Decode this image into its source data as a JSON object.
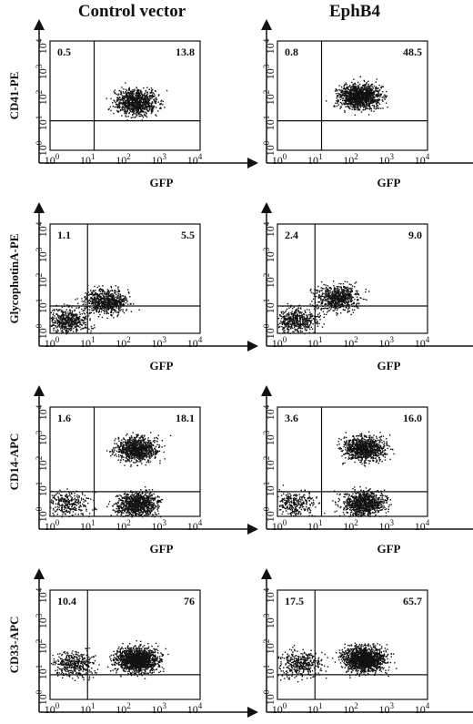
{
  "headers": {
    "control": "Control vector",
    "ephb4": "EphB4"
  },
  "xlabel": "GFP",
  "ticks": [
    {
      "base": "10",
      "exp": "0"
    },
    {
      "base": "10",
      "exp": "1"
    },
    {
      "base": "10",
      "exp": "2"
    },
    {
      "base": "10",
      "exp": "3"
    },
    {
      "base": "10",
      "exp": "4"
    }
  ],
  "chart_data": [
    {
      "type": "scatter",
      "row": 1,
      "column": "Control vector",
      "ylabel": "CD41-PE",
      "xlabel": "GFP",
      "xscale": "log",
      "yscale": "log",
      "xlim": [
        1,
        10000
      ],
      "ylim": [
        1,
        10000
      ],
      "quadrant_labels": {
        "upper_left": "0.5",
        "upper_right": "13.8"
      },
      "gate_x": 15,
      "gate_y": 12,
      "clusters": [
        {
          "cx": 200,
          "cy": 60,
          "n": 900
        }
      ]
    },
    {
      "type": "scatter",
      "row": 1,
      "column": "EphB4",
      "ylabel": "CD41-PE",
      "xlabel": "GFP",
      "xscale": "log",
      "yscale": "log",
      "xlim": [
        1,
        10000
      ],
      "ylim": [
        1,
        10000
      ],
      "quadrant_labels": {
        "upper_left": "0.8",
        "upper_right": "48.5"
      },
      "gate_x": 15,
      "gate_y": 12,
      "clusters": [
        {
          "cx": 150,
          "cy": 100,
          "n": 1200
        }
      ]
    },
    {
      "type": "scatter",
      "row": 2,
      "column": "Control vector",
      "ylabel": "GlycophotinA-PE",
      "xlabel": "GFP",
      "xscale": "log",
      "yscale": "log",
      "xlim": [
        1,
        10000
      ],
      "ylim": [
        1,
        10000
      ],
      "quadrant_labels": {
        "upper_left": "1.1",
        "upper_right": "5.5"
      },
      "gate_x": 10,
      "gate_y": 10,
      "clusters": [
        {
          "cx": 3,
          "cy": 3,
          "n": 500
        },
        {
          "cx": 30,
          "cy": 15,
          "n": 700
        }
      ]
    },
    {
      "type": "scatter",
      "row": 2,
      "column": "EphB4",
      "ylabel": "GlycophotinA-PE",
      "xlabel": "GFP",
      "xscale": "log",
      "yscale": "log",
      "xlim": [
        1,
        10000
      ],
      "ylim": [
        1,
        10000
      ],
      "quadrant_labels": {
        "upper_left": "2.4",
        "upper_right": "9.0"
      },
      "gate_x": 10,
      "gate_y": 10,
      "clusters": [
        {
          "cx": 3,
          "cy": 3,
          "n": 500
        },
        {
          "cx": 40,
          "cy": 20,
          "n": 700
        }
      ]
    },
    {
      "type": "scatter",
      "row": 3,
      "column": "Control vector",
      "ylabel": "CD14-APC",
      "xlabel": "GFP",
      "xscale": "log",
      "yscale": "log",
      "xlim": [
        1,
        10000
      ],
      "ylim": [
        1,
        10000
      ],
      "quadrant_labels": {
        "upper_left": "1.6",
        "upper_right": "18.1"
      },
      "gate_x": 15,
      "gate_y": 8,
      "clusters": [
        {
          "cx": 200,
          "cy": 300,
          "n": 900
        },
        {
          "cx": 200,
          "cy": 3,
          "n": 900
        },
        {
          "cx": 3,
          "cy": 3,
          "n": 300
        }
      ]
    },
    {
      "type": "scatter",
      "row": 3,
      "column": "EphB4",
      "ylabel": "CD14-APC",
      "xlabel": "GFP",
      "xscale": "log",
      "yscale": "log",
      "xlim": [
        1,
        10000
      ],
      "ylim": [
        1,
        10000
      ],
      "quadrant_labels": {
        "upper_left": "3.6",
        "upper_right": "16.0"
      },
      "gate_x": 15,
      "gate_y": 8,
      "clusters": [
        {
          "cx": 200,
          "cy": 300,
          "n": 900
        },
        {
          "cx": 200,
          "cy": 3,
          "n": 900
        },
        {
          "cx": 3,
          "cy": 3,
          "n": 300
        }
      ]
    },
    {
      "type": "scatter",
      "row": 4,
      "column": "Control vector",
      "ylabel": "CD33-APC",
      "xlabel": "GFP",
      "xscale": "log",
      "yscale": "log",
      "xlim": [
        1,
        10000
      ],
      "ylim": [
        1,
        10000
      ],
      "quadrant_labels": {
        "upper_left": "10.4",
        "upper_right": "76"
      },
      "gate_x": 10,
      "gate_y": 8,
      "clusters": [
        {
          "cx": 200,
          "cy": 30,
          "n": 1400
        },
        {
          "cx": 4,
          "cy": 20,
          "n": 400
        }
      ]
    },
    {
      "type": "scatter",
      "row": 4,
      "column": "EphB4",
      "ylabel": "CD33-APC",
      "xlabel": "GFP",
      "xscale": "log",
      "yscale": "log",
      "xlim": [
        1,
        10000
      ],
      "ylim": [
        1,
        10000
      ],
      "quadrant_labels": {
        "upper_left": "17.5",
        "upper_right": "65.7"
      },
      "gate_x": 10,
      "gate_y": 8,
      "clusters": [
        {
          "cx": 200,
          "cy": 30,
          "n": 1400
        },
        {
          "cx": 4,
          "cy": 20,
          "n": 400
        }
      ]
    }
  ]
}
